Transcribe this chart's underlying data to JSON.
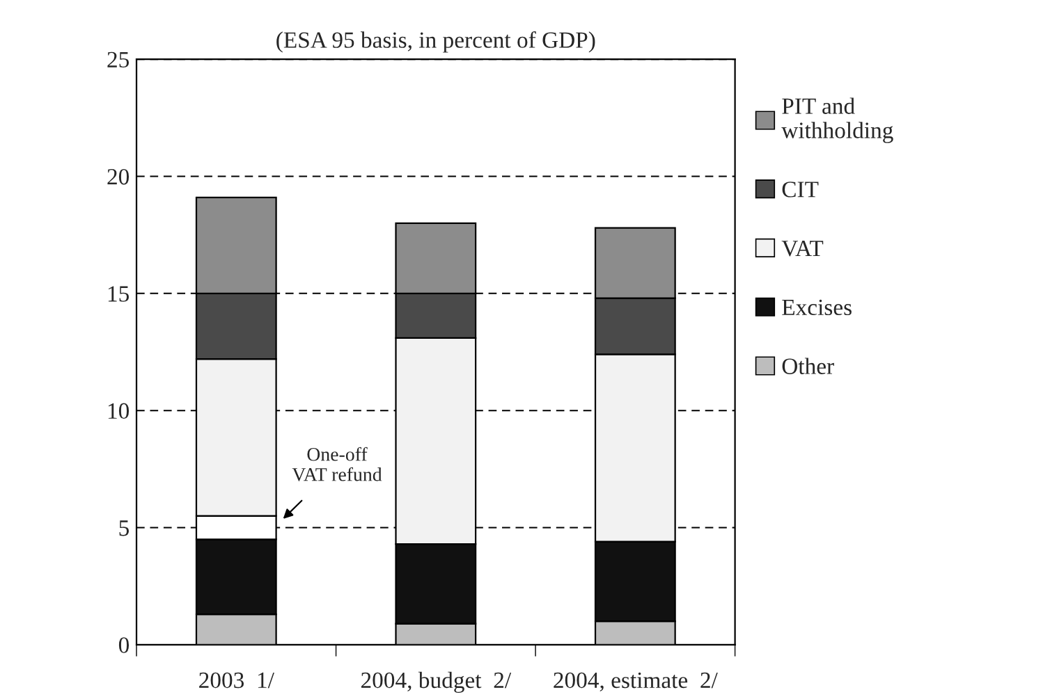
{
  "chart_data": {
    "type": "bar",
    "stacked": true,
    "title": "(ESA 95 basis, in percent of GDP)",
    "categories": [
      "2003  1/",
      "2004, budget  2/",
      "2004, estimate  2/"
    ],
    "series": [
      {
        "name": "Other",
        "color": "#bdbdbd",
        "values": [
          1.3,
          0.9,
          1.0
        ]
      },
      {
        "name": "Excises",
        "color": "#111111",
        "values": [
          3.2,
          3.4,
          3.4
        ]
      },
      {
        "color": "#ffffff",
        "values": [
          1.0,
          null,
          null
        ]
      },
      {
        "name": "VAT",
        "color": "#f2f2f2",
        "values": [
          6.7,
          8.8,
          8.0
        ]
      },
      {
        "name": "CIT",
        "color": "#4a4a4a",
        "values": [
          2.8,
          1.9,
          2.4
        ]
      },
      {
        "name": "PIT and withholding",
        "color": "#8c8c8c",
        "values": [
          4.1,
          3.0,
          3.0
        ]
      }
    ],
    "ylim": [
      0,
      25
    ],
    "yticks": [
      0,
      5,
      10,
      15,
      20,
      25
    ],
    "grid": "y",
    "legend": "right",
    "annotations": [
      "One-off\nVAT refund"
    ]
  }
}
